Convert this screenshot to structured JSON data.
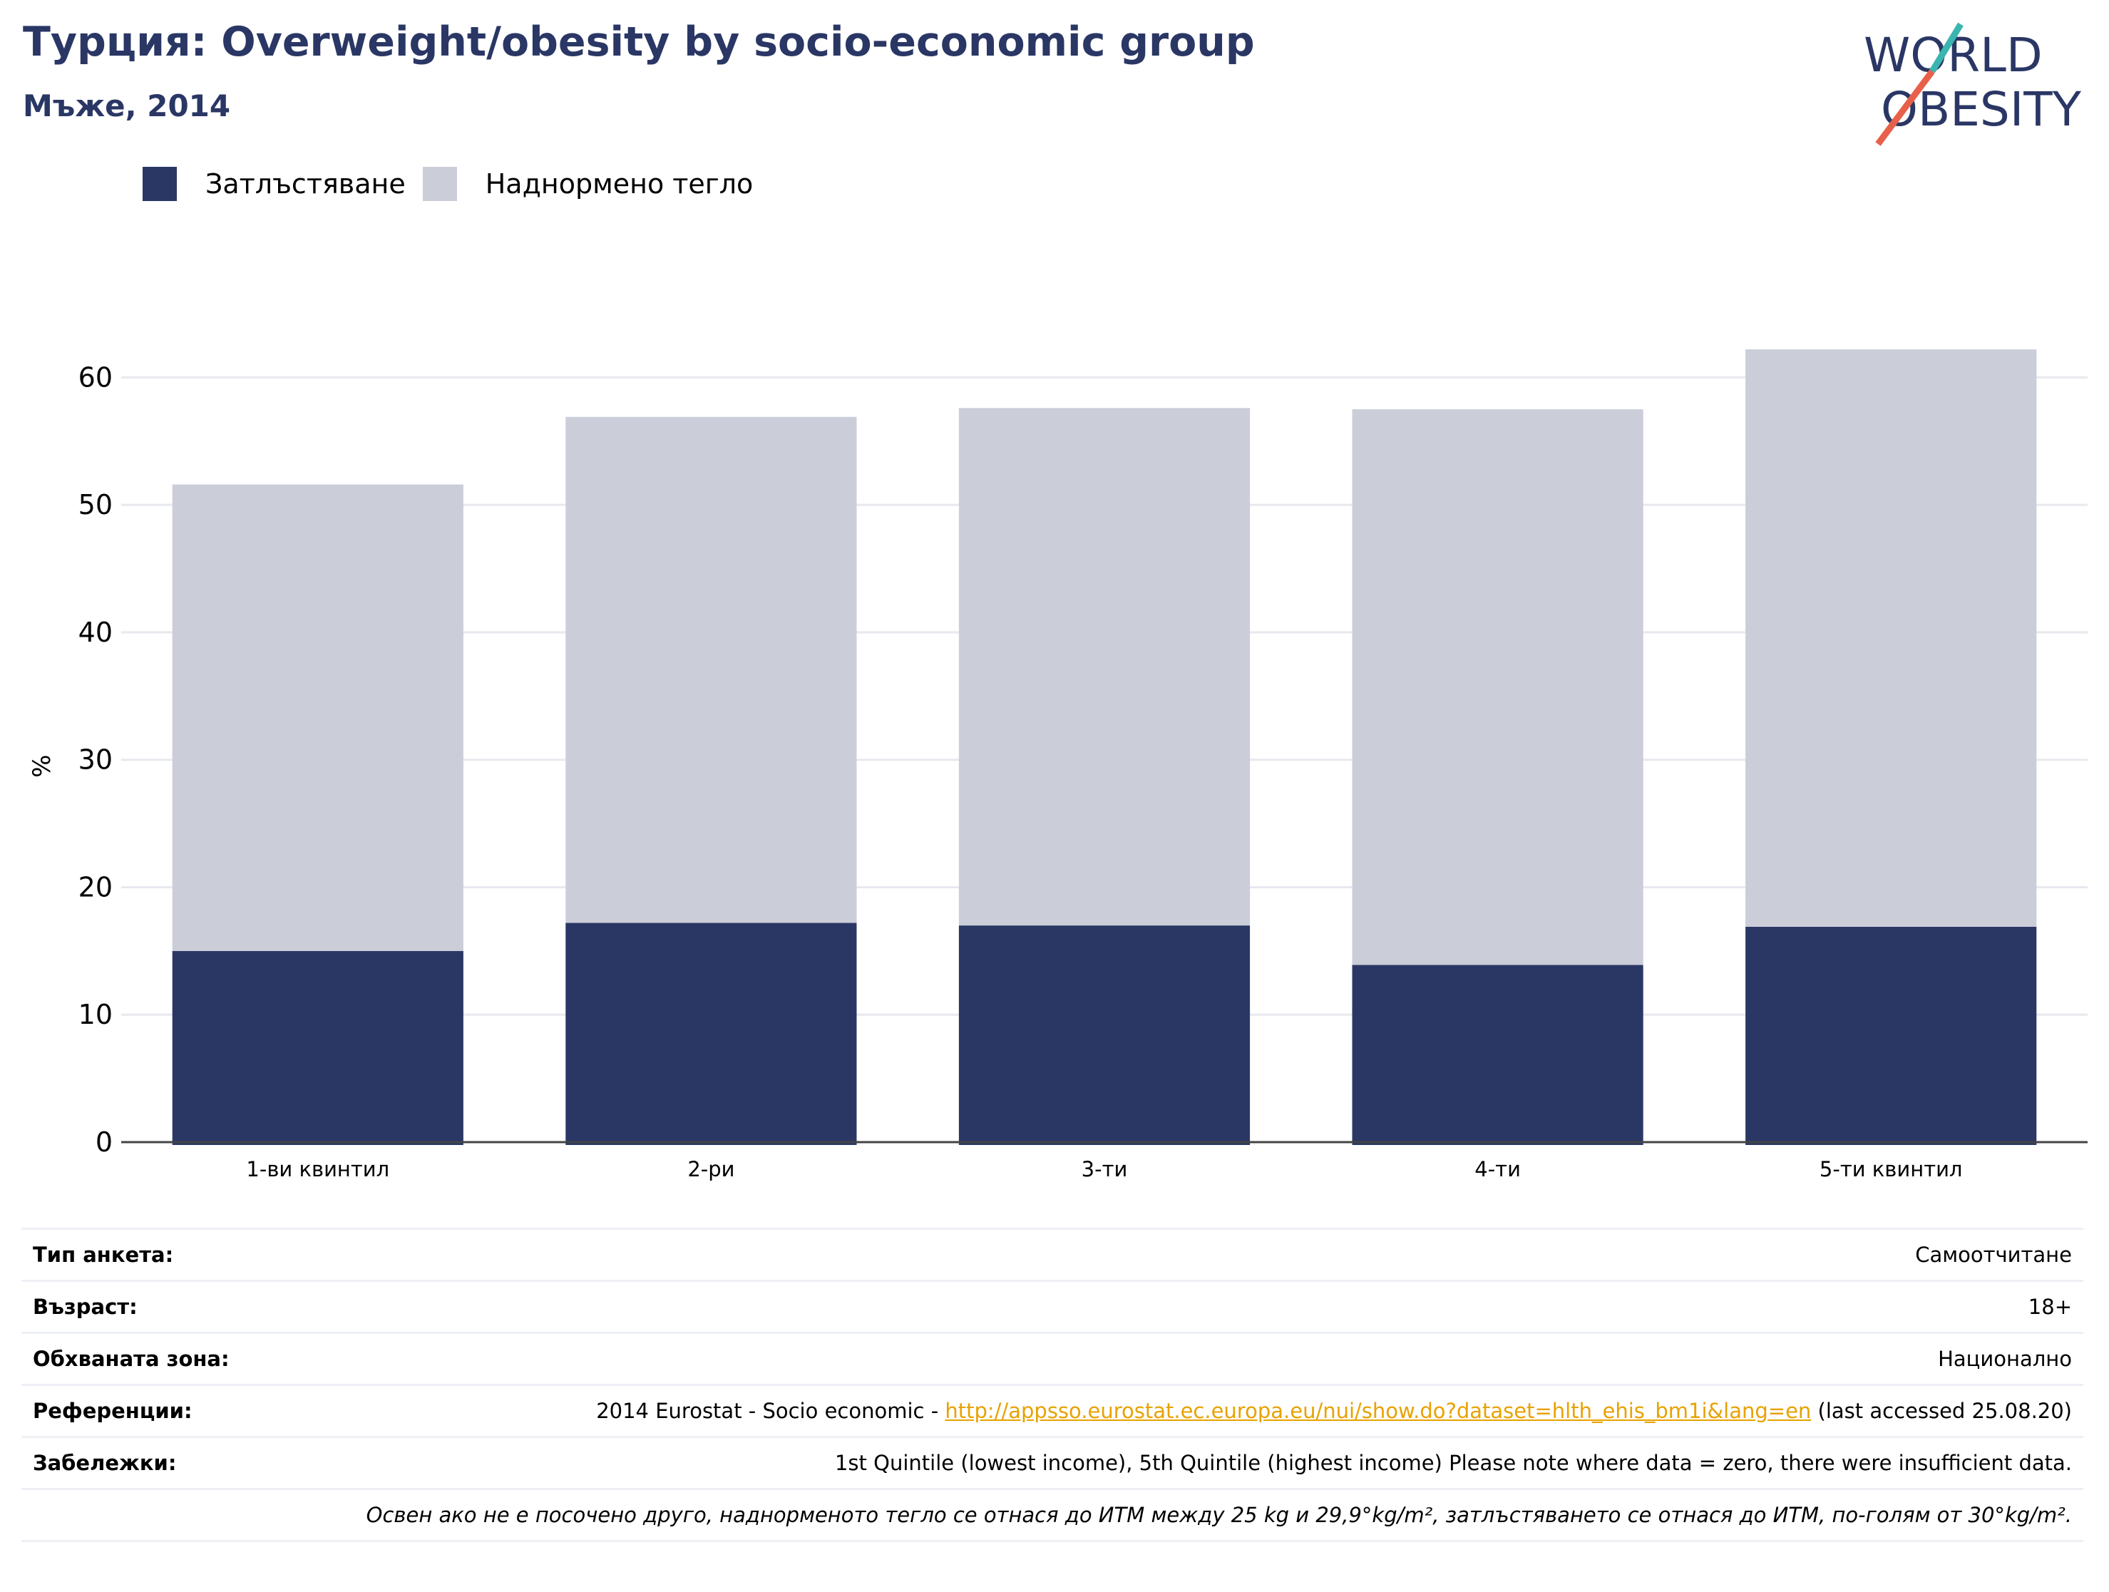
{
  "header": {
    "title": "Турция: Overweight/obesity by socio-economic group",
    "subtitle": "Мъже, 2014"
  },
  "logo": {
    "line1": "WORLD",
    "line2": "OBESITY"
  },
  "colors": {
    "obesity": "#2a3765",
    "overweight": "#cbcdd9",
    "accent_teal": "#3bb5b0",
    "accent_red": "#e8604a",
    "link": "#e8a200"
  },
  "chart_data": {
    "type": "bar",
    "stacked": true,
    "categories": [
      "1-ви квинтил",
      "2-ри",
      "3-ти",
      "4-ти",
      "5-ти квинтил"
    ],
    "series": [
      {
        "name": "Затлъстяване",
        "values": [
          15.0,
          17.2,
          17.0,
          13.9,
          16.9
        ]
      },
      {
        "name": "Наднормено тегло",
        "values": [
          36.6,
          39.7,
          40.6,
          43.6,
          45.3
        ]
      }
    ],
    "ylabel": "%",
    "ylim": [
      0,
      65
    ],
    "yticks": [
      0,
      10,
      20,
      30,
      40,
      50,
      60
    ],
    "grid": true,
    "legend": "top-left"
  },
  "info": {
    "survey_type": {
      "label": "Тип анкета:",
      "value": "Самоотчитане"
    },
    "age": {
      "label": "Възраст:",
      "value": "18+"
    },
    "area": {
      "label": "Обхваната зона:",
      "value": "Национално"
    },
    "references": {
      "label": "Референции:",
      "prefix": "2014 Eurostat - Socio economic - ",
      "link": "http://appsso.eurostat.ec.europa.eu/nui/show.do?dataset=hlth_ehis_bm1i&lang=en",
      "suffix": " (last accessed 25.08.20)"
    },
    "notes": {
      "label": "Забележки:",
      "value": "1st Quintile (lowest income), 5th Quintile (highest income) Please note where data = zero, there were insufficient data."
    },
    "footnote": "Освен ако не е посочено друго, наднорменото тегло се отнася до ИТМ между 25 kg и 29,9°kg/m², затлъстяването се отнася до ИТМ, по-голям от 30°kg/m²."
  }
}
